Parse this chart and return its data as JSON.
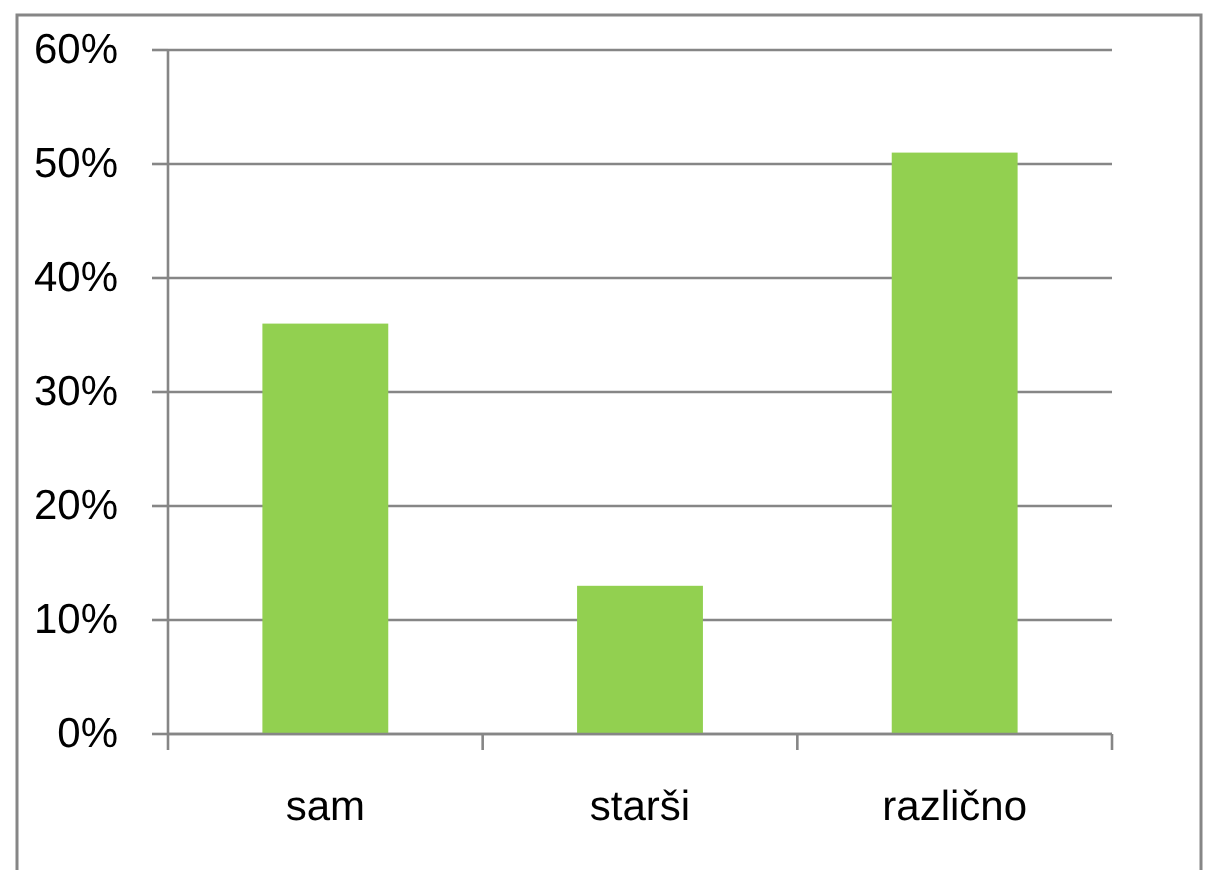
{
  "chart_data": {
    "type": "bar",
    "categories": [
      "sam",
      "starši",
      "različno"
    ],
    "values": [
      36,
      13,
      51
    ],
    "color": "#92d050",
    "ylim": [
      0,
      60
    ],
    "yticks": [
      {
        "value": 0,
        "label": "0%"
      },
      {
        "value": 10,
        "label": "10%"
      },
      {
        "value": 20,
        "label": "20%"
      },
      {
        "value": 30,
        "label": "30%"
      },
      {
        "value": 40,
        "label": "40%"
      },
      {
        "value": 50,
        "label": "50%"
      },
      {
        "value": 60,
        "label": "60%"
      }
    ],
    "grid": "y"
  }
}
